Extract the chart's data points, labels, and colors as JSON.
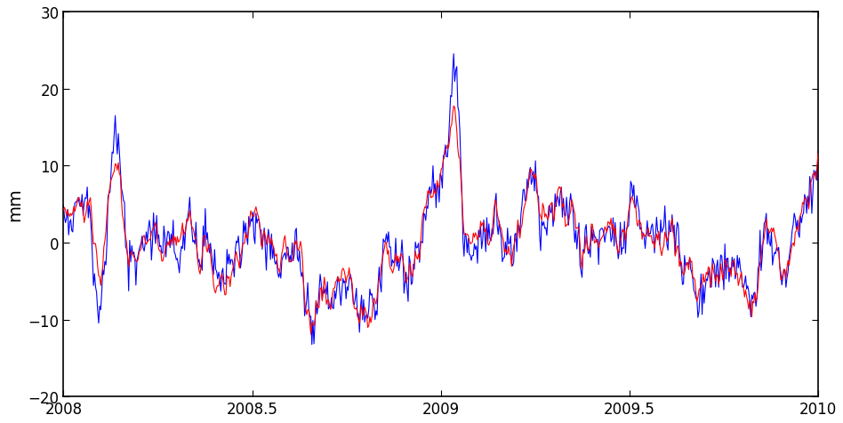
{
  "title": "",
  "ylabel": "mm",
  "xlim": [
    2008.0,
    2010.0
  ],
  "ylim": [
    -20,
    30
  ],
  "yticks": [
    -20,
    -10,
    0,
    10,
    20,
    30
  ],
  "xticks": [
    2008.0,
    2008.5,
    2009.0,
    2009.5,
    2010.0
  ],
  "xticklabels": [
    "2008",
    "2008.5",
    "2009",
    "2009.5",
    "2010"
  ],
  "blue_color": "#0000ff",
  "red_color": "#ff0000",
  "linewidth": 0.8,
  "figsize": [
    9.48,
    4.77
  ],
  "dpi": 100,
  "seed": 42,
  "n_points": 730,
  "bg_color": "#ffffff",
  "spine_color": "#000000"
}
